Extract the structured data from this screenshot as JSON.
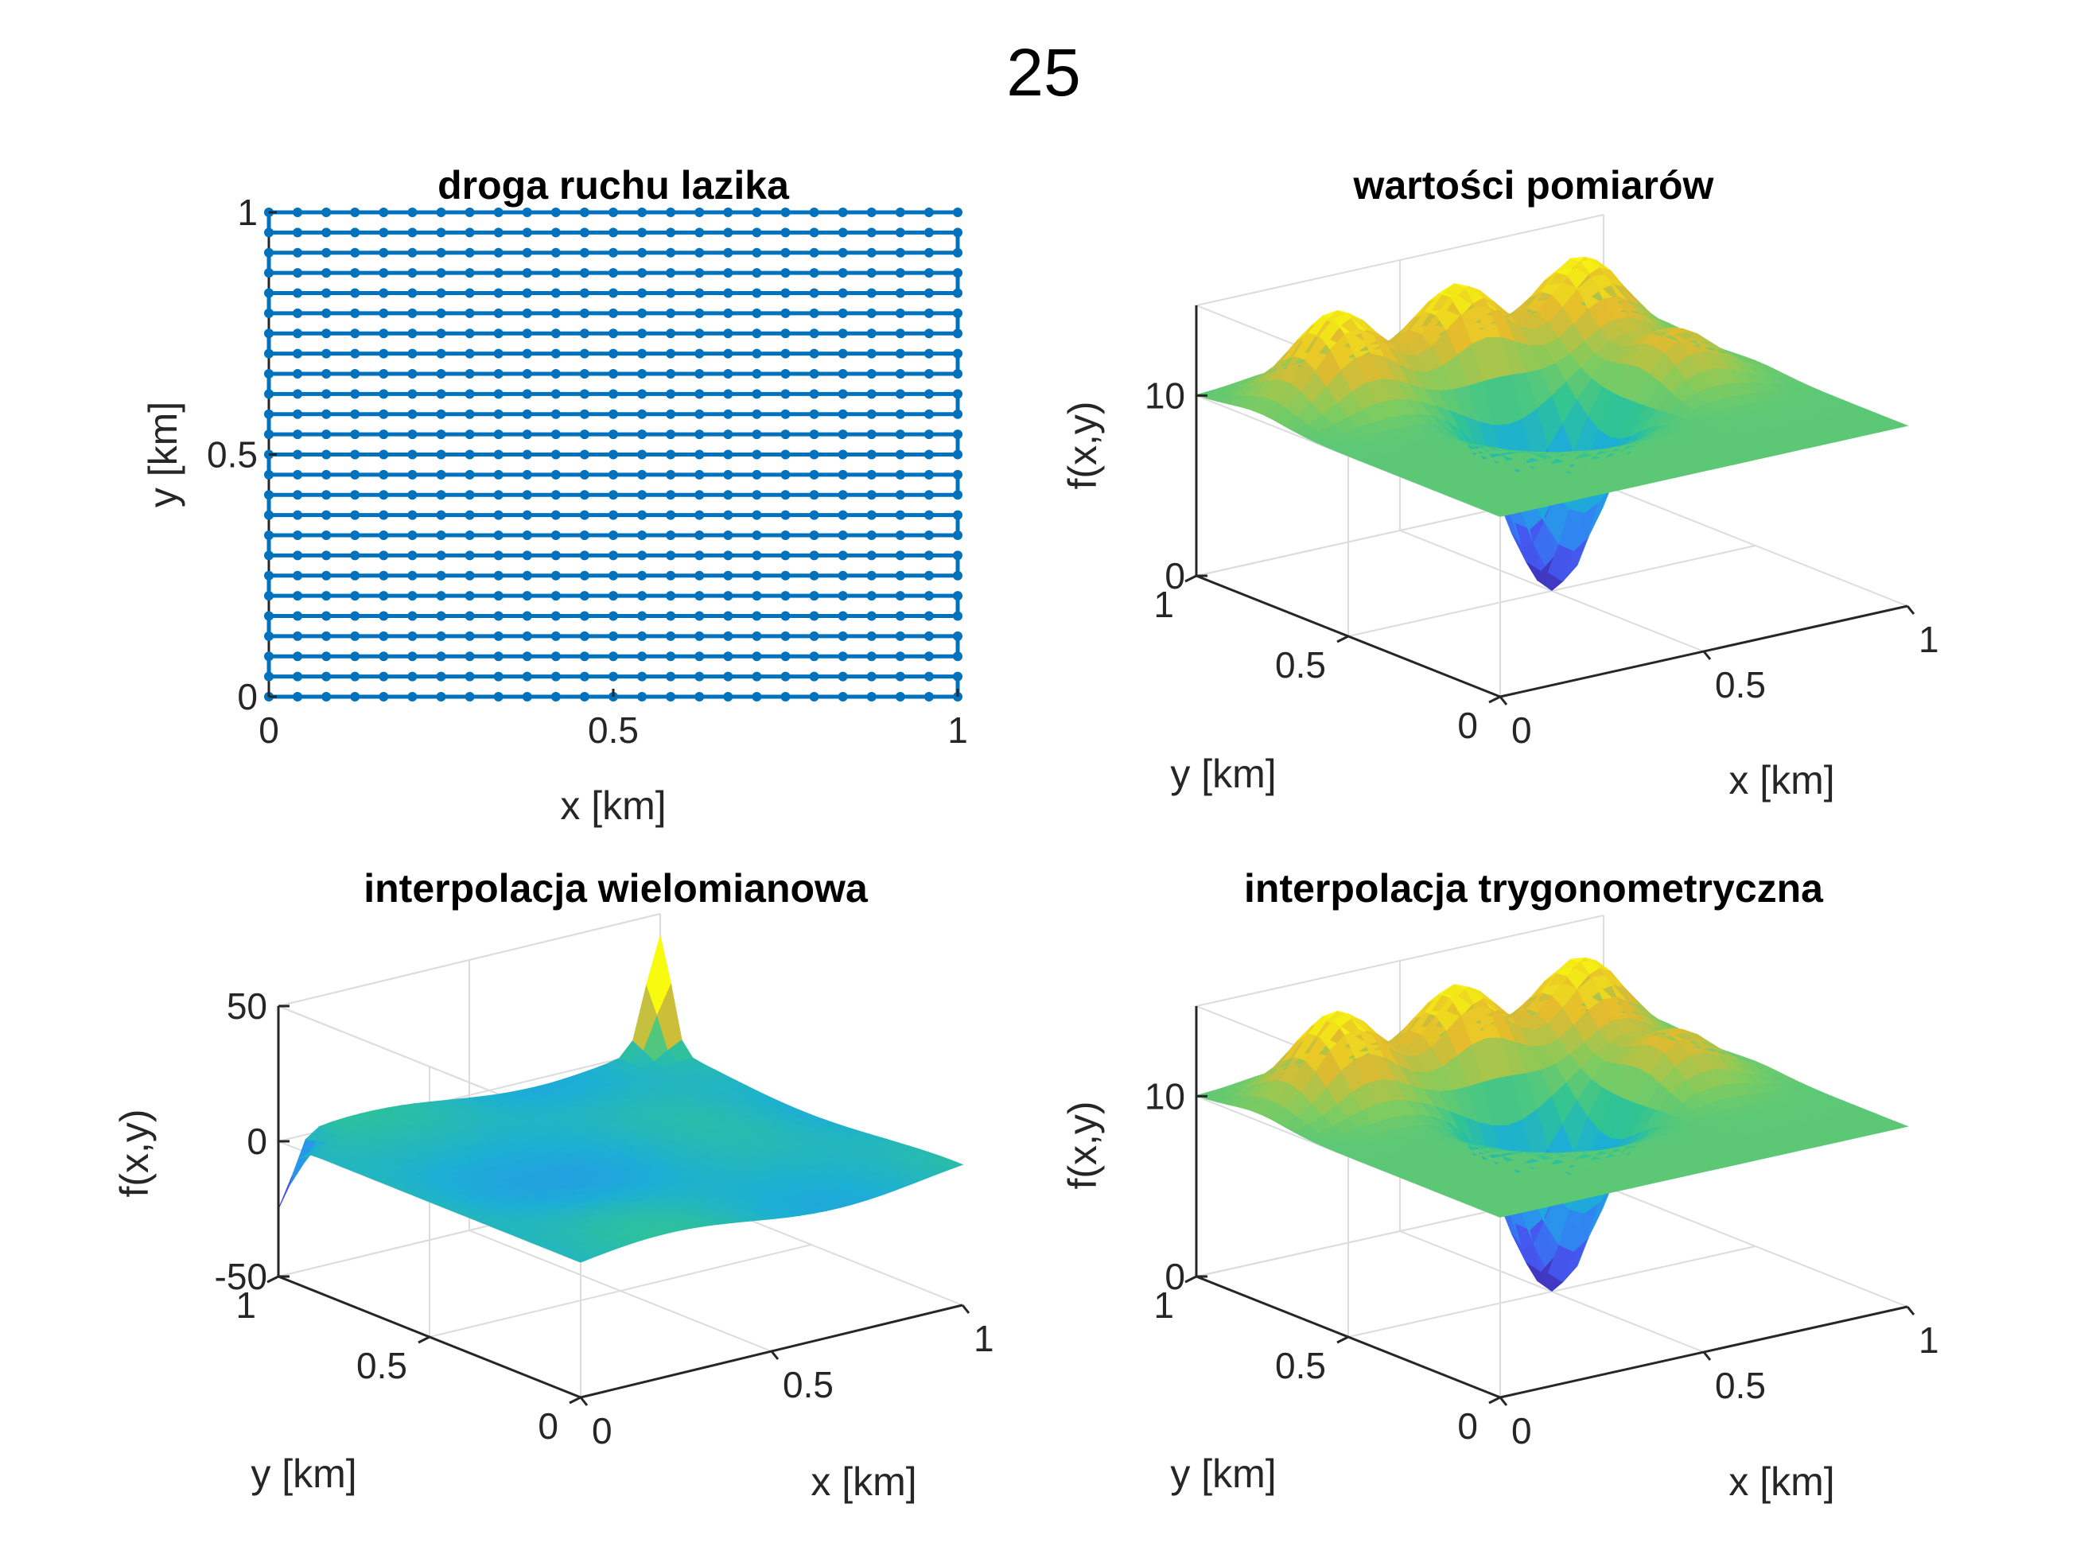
{
  "figure": {
    "title": "25"
  },
  "chart_data": [
    {
      "id": "path",
      "type": "line",
      "title": "droga ruchu lazika",
      "xlabel": "x [km]",
      "ylabel": "y [km]",
      "xlim": [
        0,
        1
      ],
      "ylim": [
        0,
        1
      ],
      "xticks": [
        "0",
        "0.5",
        "1"
      ],
      "yticks": [
        "0",
        "0.5",
        "1"
      ],
      "grid": false,
      "series": [
        {
          "color": "#0072BD",
          "marker": "dot",
          "description_points": "25 x 25 serpentine grid of measurement points"
        }
      ],
      "n_points_per_side": 25
    },
    {
      "id": "measured",
      "type": "heatmap",
      "title": "wartości pomiarów",
      "xlabel": "x [km]",
      "ylabel": "y [km]",
      "zlabel": "f(x,y)",
      "xlim": [
        0,
        1
      ],
      "ylim": [
        0,
        1
      ],
      "zlim": [
        0,
        15
      ],
      "xticks": [
        "0",
        "0.5",
        "1"
      ],
      "yticks": [
        "0",
        "0.5",
        "1"
      ],
      "zticks": [
        "0",
        "10"
      ],
      "grid": true,
      "base_value": 10,
      "features": [
        {
          "x": 0.2,
          "y": 0.8,
          "value": 15
        },
        {
          "x": 0.5,
          "y": 0.8,
          "value": 15
        },
        {
          "x": 0.8,
          "y": 0.8,
          "value": 15
        },
        {
          "x": 0.8,
          "y": 0.5,
          "value": 13
        },
        {
          "x": 0.5,
          "y": 0.5,
          "value": 0
        }
      ]
    },
    {
      "id": "poly",
      "type": "heatmap",
      "title": "interpolacja wielomianowa",
      "xlabel": "x [km]",
      "ylabel": "y [km]",
      "zlabel": "f(x,y)",
      "xlim": [
        0,
        1
      ],
      "ylim": [
        0,
        1
      ],
      "zlim": [
        -50,
        50
      ],
      "xticks": [
        "0",
        "0.5",
        "1"
      ],
      "yticks": [
        "0",
        "0.5",
        "1"
      ],
      "zticks": [
        "-50",
        "0",
        "50"
      ],
      "grid": true,
      "base_value": 0,
      "features": [
        {
          "x": 1.0,
          "y": 1.0,
          "value": 40
        },
        {
          "x": 0.0,
          "y": 1.0,
          "value": -25
        }
      ]
    },
    {
      "id": "trig",
      "type": "heatmap",
      "title": "interpolacja trygonometryczna",
      "xlabel": "x [km]",
      "ylabel": "y [km]",
      "zlabel": "f(x,y)",
      "xlim": [
        0,
        1
      ],
      "ylim": [
        0,
        1
      ],
      "zlim": [
        0,
        15
      ],
      "xticks": [
        "0",
        "0.5",
        "1"
      ],
      "yticks": [
        "0",
        "0.5",
        "1"
      ],
      "zticks": [
        "0",
        "10"
      ],
      "grid": true,
      "base_value": 10,
      "features": [
        {
          "x": 0.2,
          "y": 0.8,
          "value": 15
        },
        {
          "x": 0.5,
          "y": 0.8,
          "value": 15
        },
        {
          "x": 0.8,
          "y": 0.8,
          "value": 15
        },
        {
          "x": 0.8,
          "y": 0.5,
          "value": 13
        },
        {
          "x": 0.5,
          "y": 0.5,
          "value": 0
        }
      ]
    }
  ],
  "colormap": {
    "name": "parula",
    "low": "#3E26A8",
    "mid": "#24B3AB",
    "high": "#F9FB0E"
  }
}
